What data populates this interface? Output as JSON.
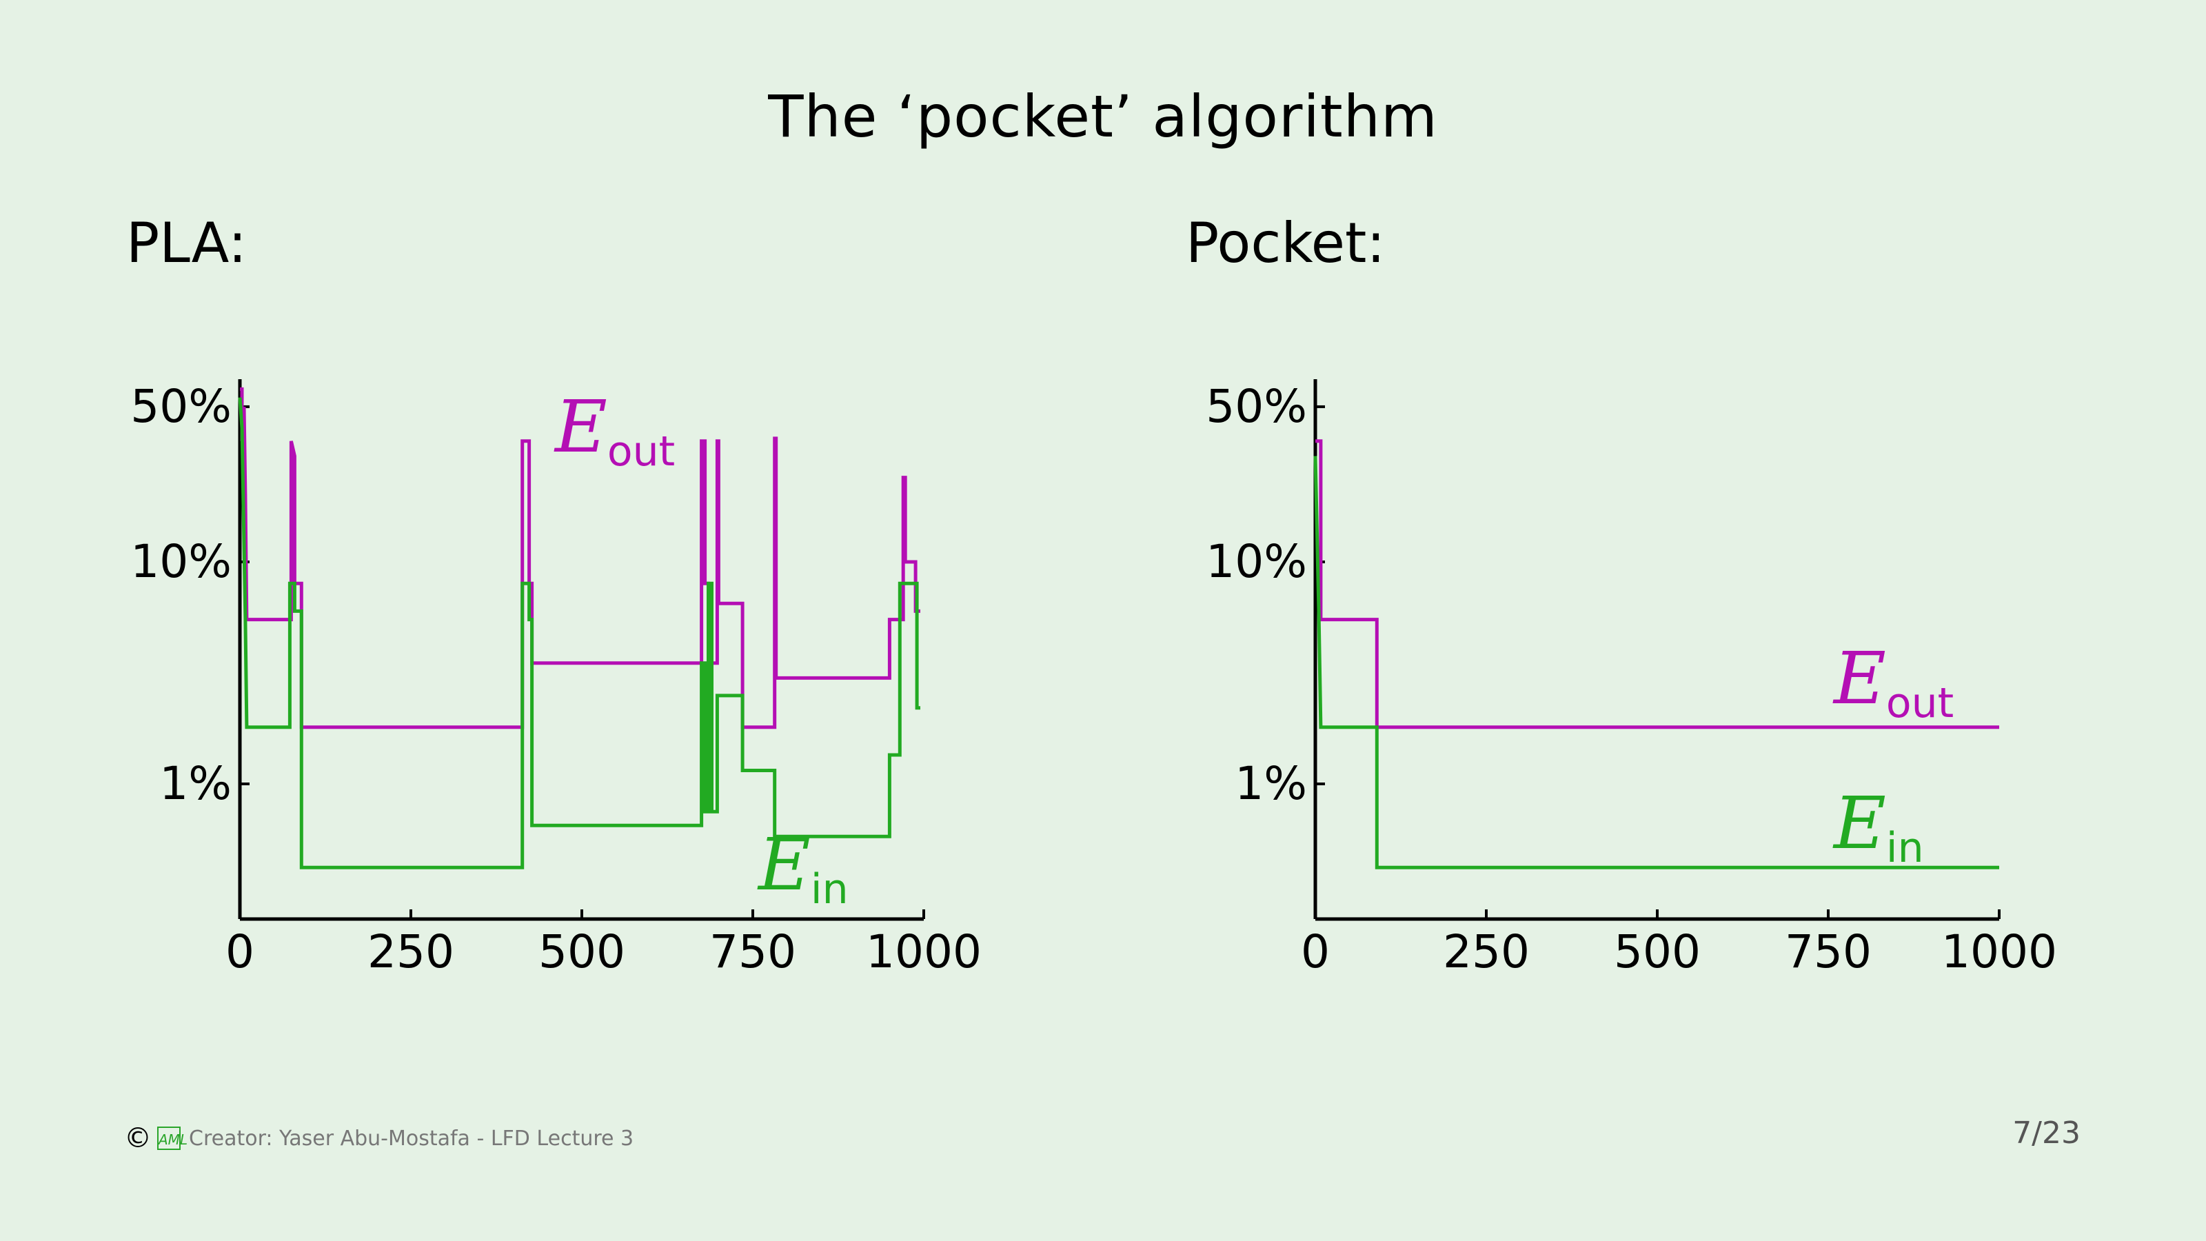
{
  "slide": {
    "title": "The ‘pocket’ algorithm",
    "footer_text": "Creator: Yaser Abu-Mostafa - LFD Lecture 3",
    "copyright_symbol": "©",
    "logo_text": "AML",
    "page_number": "7/23"
  },
  "colors": {
    "e_out": "#b40fb4",
    "e_in": "#22aa22",
    "axis": "#000000",
    "background": "#e5f2e5"
  },
  "chart_data": [
    {
      "id": "pla",
      "type": "line",
      "panel_label": "PLA:",
      "x_ticks": [
        0,
        250,
        500,
        750,
        1000
      ],
      "x_tick_labels": [
        "0",
        "250",
        "500",
        "750",
        "1000"
      ],
      "y_scale": "log",
      "y_ticks": [
        0.01,
        0.1,
        0.5
      ],
      "y_tick_labels": [
        "1%",
        "10%",
        "50%"
      ],
      "xlim": [
        0,
        1000
      ],
      "ylim": [
        0.0025,
        0.6
      ],
      "series": [
        {
          "name": "E_out",
          "label_main": "E",
          "label_sub": "out",
          "color_key": "e_out",
          "points": [
            [
              0,
              0.6
            ],
            [
              3,
              0.6
            ],
            [
              3,
              0.35
            ],
            [
              6,
              0.5
            ],
            [
              8,
              0.2
            ],
            [
              10,
              0.055
            ],
            [
              75,
              0.055
            ],
            [
              75,
              0.35
            ],
            [
              80,
              0.3
            ],
            [
              80,
              0.08
            ],
            [
              90,
              0.08
            ],
            [
              90,
              0.018
            ],
            [
              413,
              0.018
            ],
            [
              413,
              0.35
            ],
            [
              423,
              0.35
            ],
            [
              423,
              0.08
            ],
            [
              427,
              0.08
            ],
            [
              427,
              0.035
            ],
            [
              675,
              0.035
            ],
            [
              675,
              0.35
            ],
            [
              680,
              0.35
            ],
            [
              680,
              0.08
            ],
            [
              685,
              0.08
            ],
            [
              685,
              0.035
            ],
            [
              698,
              0.035
            ],
            [
              698,
              0.35
            ],
            [
              700,
              0.35
            ],
            [
              700,
              0.065
            ],
            [
              735,
              0.065
            ],
            [
              735,
              0.018
            ],
            [
              782,
              0.018
            ],
            [
              782,
              0.36
            ],
            [
              784,
              0.36
            ],
            [
              784,
              0.03
            ],
            [
              950,
              0.03
            ],
            [
              950,
              0.055
            ],
            [
              970,
              0.055
            ],
            [
              970,
              0.24
            ],
            [
              973,
              0.24
            ],
            [
              973,
              0.1
            ],
            [
              988,
              0.1
            ],
            [
              988,
              0.06
            ],
            [
              995,
              0.06
            ]
          ]
        },
        {
          "name": "E_in",
          "label_main": "E",
          "label_sub": "in",
          "color_key": "e_in",
          "points": [
            [
              0,
              0.55
            ],
            [
              3,
              0.4
            ],
            [
              8,
              0.055
            ],
            [
              10,
              0.018
            ],
            [
              73,
              0.018
            ],
            [
              73,
              0.08
            ],
            [
              80,
              0.08
            ],
            [
              80,
              0.06
            ],
            [
              90,
              0.06
            ],
            [
              90,
              0.0042
            ],
            [
              413,
              0.0042
            ],
            [
              413,
              0.08
            ],
            [
              423,
              0.08
            ],
            [
              423,
              0.055
            ],
            [
              427,
              0.055
            ],
            [
              427,
              0.0065
            ],
            [
              675,
              0.0065
            ],
            [
              675,
              0.035
            ],
            [
              680,
              0.035
            ],
            [
              680,
              0.0075
            ],
            [
              685,
              0.0075
            ],
            [
              685,
              0.08
            ],
            [
              690,
              0.08
            ],
            [
              690,
              0.0075
            ],
            [
              698,
              0.0075
            ],
            [
              698,
              0.025
            ],
            [
              735,
              0.025
            ],
            [
              735,
              0.0115
            ],
            [
              782,
              0.0115
            ],
            [
              782,
              0.0058
            ],
            [
              950,
              0.0058
            ],
            [
              950,
              0.0135
            ],
            [
              965,
              0.0135
            ],
            [
              965,
              0.08
            ],
            [
              990,
              0.08
            ],
            [
              990,
              0.022
            ],
            [
              995,
              0.022
            ]
          ]
        }
      ]
    },
    {
      "id": "pocket",
      "type": "line",
      "panel_label": "Pocket:",
      "x_ticks": [
        0,
        250,
        500,
        750,
        1000
      ],
      "x_tick_labels": [
        "0",
        "250",
        "500",
        "750",
        "1000"
      ],
      "y_scale": "log",
      "y_ticks": [
        0.01,
        0.1,
        0.5
      ],
      "y_tick_labels": [
        "1%",
        "10%",
        "50%"
      ],
      "xlim": [
        0,
        1000
      ],
      "ylim": [
        0.0025,
        0.6
      ],
      "series": [
        {
          "name": "E_out",
          "label_main": "E",
          "label_sub": "out",
          "color_key": "e_out",
          "points": [
            [
              0,
              0.35
            ],
            [
              8,
              0.35
            ],
            [
              8,
              0.055
            ],
            [
              90,
              0.055
            ],
            [
              90,
              0.018
            ],
            [
              1000,
              0.018
            ]
          ]
        },
        {
          "name": "E_in",
          "label_main": "E",
          "label_sub": "in",
          "color_key": "e_in",
          "points": [
            [
              0,
              0.3
            ],
            [
              5,
              0.06
            ],
            [
              8,
              0.018
            ],
            [
              90,
              0.018
            ],
            [
              90,
              0.0042
            ],
            [
              1000,
              0.0042
            ]
          ]
        }
      ]
    }
  ]
}
